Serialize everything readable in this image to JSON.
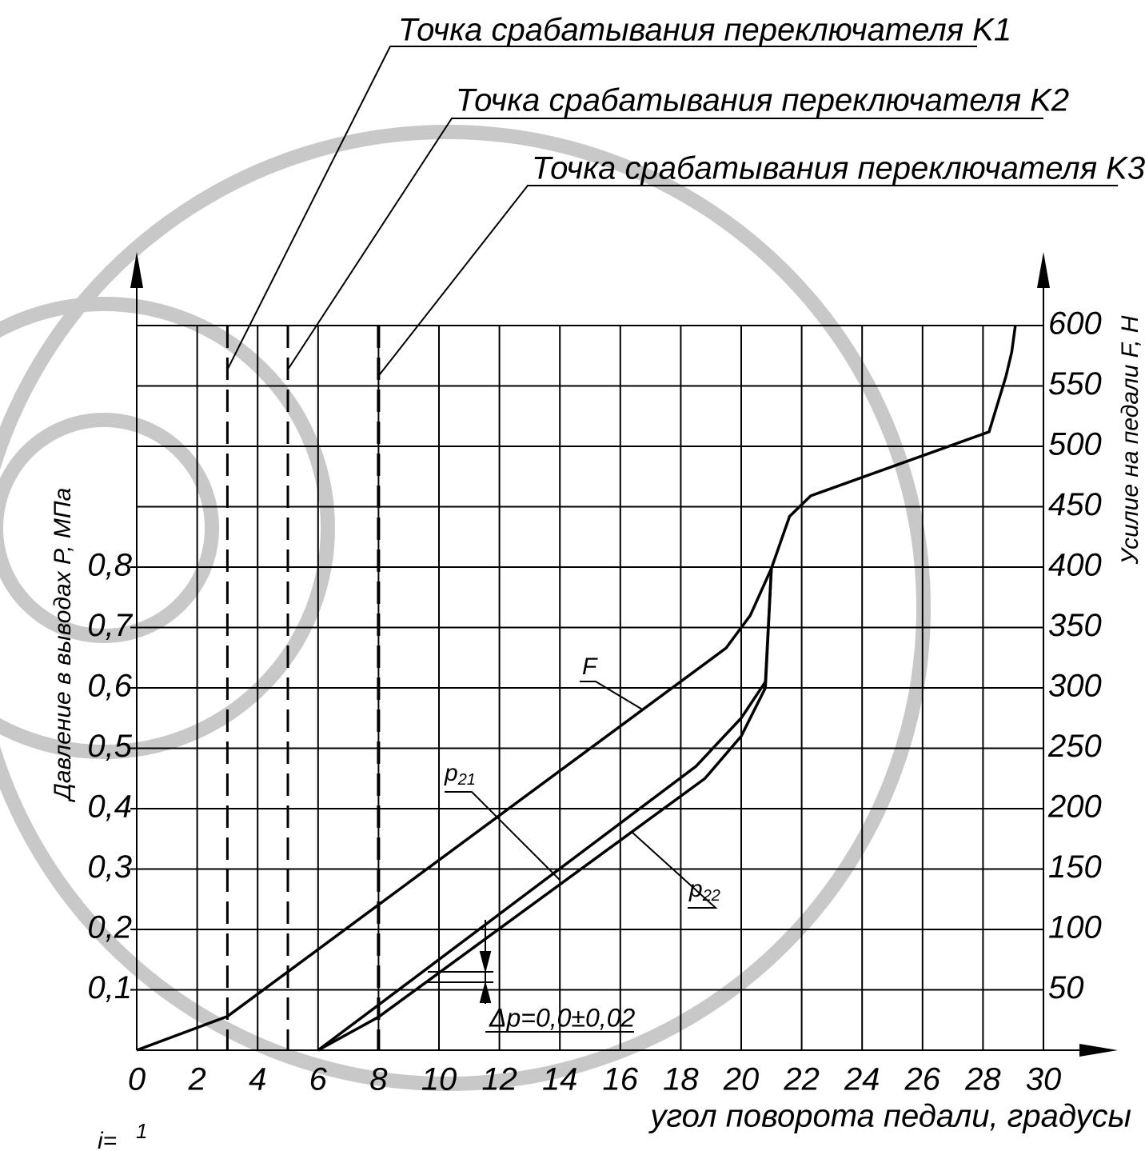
{
  "chart_data": {
    "type": "line",
    "xlabel": "угол поворота педали, градусы",
    "ylabel": "Давление в выводах P, МПа",
    "y2label": "Усилие на педали F, Н",
    "xlim": [
      0,
      30
    ],
    "xticks": [
      0,
      2,
      4,
      6,
      8,
      10,
      12,
      14,
      16,
      18,
      20,
      22,
      24,
      26,
      28,
      30
    ],
    "ylim": [
      0,
      1.2
    ],
    "yticks": [
      {
        "value": 0.1,
        "label": "0,1"
      },
      {
        "value": 0.2,
        "label": "0,2"
      },
      {
        "value": 0.3,
        "label": "0,3"
      },
      {
        "value": 0.4,
        "label": "0,4"
      },
      {
        "value": 0.5,
        "label": "0,5"
      },
      {
        "value": 0.6,
        "label": "0,6"
      },
      {
        "value": 0.7,
        "label": "0,7"
      },
      {
        "value": 0.8,
        "label": "0,8"
      }
    ],
    "y2lim": [
      0,
      600
    ],
    "y2ticks": [
      50,
      100,
      150,
      200,
      250,
      300,
      350,
      400,
      450,
      500,
      550,
      600
    ],
    "grid": true,
    "color": "#000000",
    "series": [
      {
        "name": "F",
        "axis": "y2",
        "x": [
          0,
          3,
          19.5,
          20.3,
          21,
          21.6,
          22.3,
          28.2,
          28.76,
          28.95,
          29.07
        ],
        "values": [
          0,
          28,
          333,
          360,
          399,
          442,
          459,
          512,
          558,
          578,
          600
        ]
      },
      {
        "name": "p21",
        "axis": "y",
        "x": [
          6,
          8,
          18.5,
          20,
          20.8,
          21
        ],
        "values": [
          0,
          0.075,
          0.47,
          0.55,
          0.61,
          0.8
        ]
      },
      {
        "name": "p22",
        "axis": "y",
        "x": [
          6,
          8,
          18.8,
          20,
          20.8,
          21
        ],
        "values": [
          0,
          0.055,
          0.45,
          0.52,
          0.6,
          0.8
        ]
      }
    ],
    "switch_points": [
      {
        "label": "Точка срабатывания переключателя K1",
        "x": 3
      },
      {
        "label": "Точка срабатывания переключателя K2",
        "x": 5
      },
      {
        "label": "Точка срабатывания переключателя K3",
        "x": 8
      }
    ],
    "delta_note": "Δp=0,0±0,02",
    "scale_note": {
      "prefix": "i=",
      "numerator": "1"
    }
  }
}
